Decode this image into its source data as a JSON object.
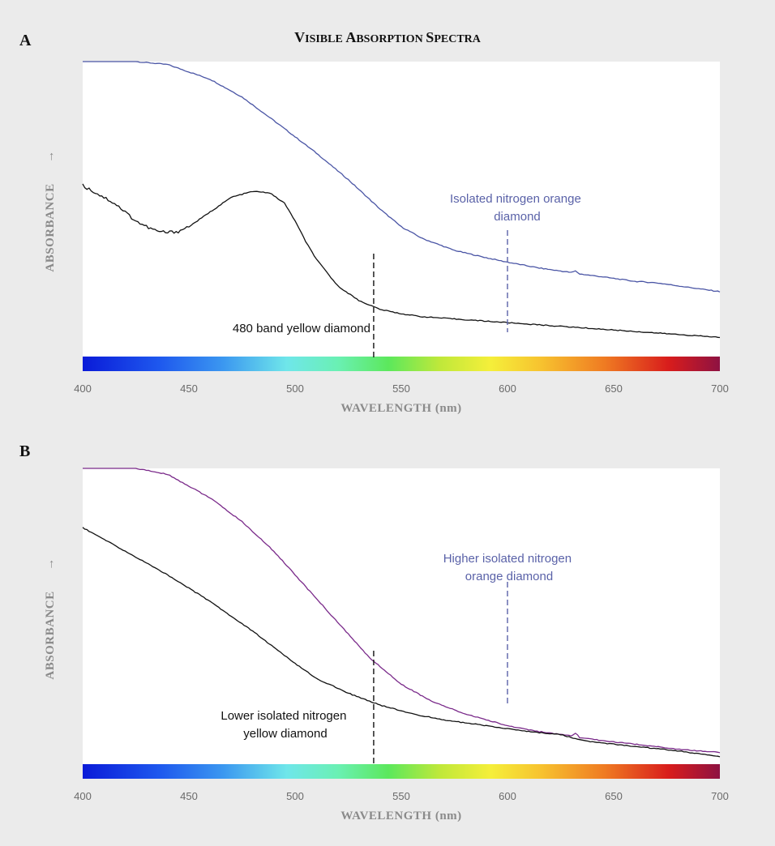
{
  "figure": {
    "title_cap1": "V",
    "title_rest1": "ISIBLE ",
    "title_cap2": "A",
    "title_rest2": "BSORPTION ",
    "title_cap3": "S",
    "title_rest3": "PECTRA"
  },
  "colors": {
    "background": "#ebebeb",
    "plot_bg": "#ffffff",
    "panel_a_orange_line": "#4a55a5",
    "panel_b_orange_line": "#7a2a8a",
    "yellow_line": "#111111",
    "annotation_blue": "#5a62a8"
  },
  "chart_data": [
    {
      "type": "line",
      "panel_label": "A",
      "xlabel": "WAVELENGTH (nm)",
      "ylabel": "ABSORBANCE",
      "ylabel_arrow": "→",
      "xlim": [
        400,
        700
      ],
      "ylim": [
        0,
        1
      ],
      "x_ticks": [
        400,
        450,
        500,
        550,
        600,
        650,
        700
      ],
      "y_ticks_shown": false,
      "grid": false,
      "color_bar": "visible spectrum gradient along x-axis",
      "series": [
        {
          "label": "Isolated nitrogen orange diamond",
          "color": "#4a55a5",
          "x": [
            400,
            415,
            425,
            440,
            460,
            475,
            490,
            510,
            525,
            540,
            550,
            560,
            575,
            590,
            600,
            615,
            630,
            632,
            634,
            645,
            660,
            670,
            680,
            690,
            700
          ],
          "y": [
            1.0,
            1.0,
            1.0,
            0.99,
            0.94,
            0.88,
            0.8,
            0.69,
            0.6,
            0.5,
            0.44,
            0.4,
            0.36,
            0.335,
            0.32,
            0.3,
            0.285,
            0.29,
            0.28,
            0.27,
            0.255,
            0.25,
            0.24,
            0.23,
            0.22
          ]
        },
        {
          "label": "480 band yellow diamond",
          "color": "#111111",
          "x": [
            400,
            405,
            410,
            415,
            420,
            425,
            430,
            435,
            440,
            445,
            450,
            460,
            470,
            480,
            488,
            495,
            500,
            505,
            510,
            520,
            530,
            540,
            550,
            560,
            580,
            600,
            620,
            640,
            660,
            680,
            700
          ],
          "y": [
            0.58,
            0.56,
            0.54,
            0.52,
            0.49,
            0.46,
            0.44,
            0.425,
            0.42,
            0.425,
            0.44,
            0.49,
            0.54,
            0.56,
            0.555,
            0.52,
            0.46,
            0.39,
            0.33,
            0.24,
            0.19,
            0.16,
            0.145,
            0.135,
            0.125,
            0.115,
            0.105,
            0.095,
            0.085,
            0.075,
            0.065
          ]
        }
      ],
      "annotations": [
        {
          "text": "Isolated nitrogen orange",
          "text2": "diamond",
          "color": "#5a62a8",
          "x_marker": 600
        },
        {
          "text": "480 band yellow diamond",
          "color": "#111111",
          "x_marker": 537
        }
      ]
    },
    {
      "type": "line",
      "panel_label": "B",
      "xlabel": "WAVELENGTH (nm)",
      "ylabel": "ABSORBANCE",
      "ylabel_arrow": "→",
      "xlim": [
        400,
        700
      ],
      "ylim": [
        0,
        1
      ],
      "x_ticks": [
        400,
        450,
        500,
        550,
        600,
        650,
        700
      ],
      "y_ticks_shown": false,
      "grid": false,
      "color_bar": "visible spectrum gradient along x-axis",
      "series": [
        {
          "label": "Higher isolated nitrogen orange diamond",
          "color": "#7a2a8a",
          "x": [
            400,
            415,
            425,
            440,
            460,
            475,
            490,
            505,
            520,
            535,
            550,
            565,
            580,
            600,
            615,
            630,
            632,
            634,
            650,
            670,
            680,
            690,
            700
          ],
          "y": [
            1.0,
            1.0,
            1.0,
            0.98,
            0.9,
            0.82,
            0.72,
            0.6,
            0.48,
            0.36,
            0.27,
            0.21,
            0.17,
            0.13,
            0.11,
            0.095,
            0.105,
            0.09,
            0.075,
            0.06,
            0.05,
            0.045,
            0.04
          ]
        },
        {
          "label": "Lower isolated nitrogen yellow diamond",
          "color": "#111111",
          "x": [
            400,
            420,
            440,
            460,
            480,
            500,
            510,
            525,
            540,
            555,
            570,
            590,
            610,
            625,
            633,
            640,
            660,
            680,
            690,
            700
          ],
          "y": [
            0.8,
            0.72,
            0.64,
            0.55,
            0.45,
            0.34,
            0.29,
            0.24,
            0.2,
            0.17,
            0.15,
            0.13,
            0.11,
            0.1,
            0.085,
            0.075,
            0.06,
            0.045,
            0.035,
            0.025
          ]
        }
      ],
      "annotations": [
        {
          "text": "Higher isolated nitrogen",
          "text2": "orange diamond",
          "color": "#5a62a8",
          "x_marker": 600
        },
        {
          "text": "Lower isolated nitrogen",
          "text2": "yellow diamond",
          "color": "#111111",
          "x_marker": 537
        }
      ]
    }
  ]
}
